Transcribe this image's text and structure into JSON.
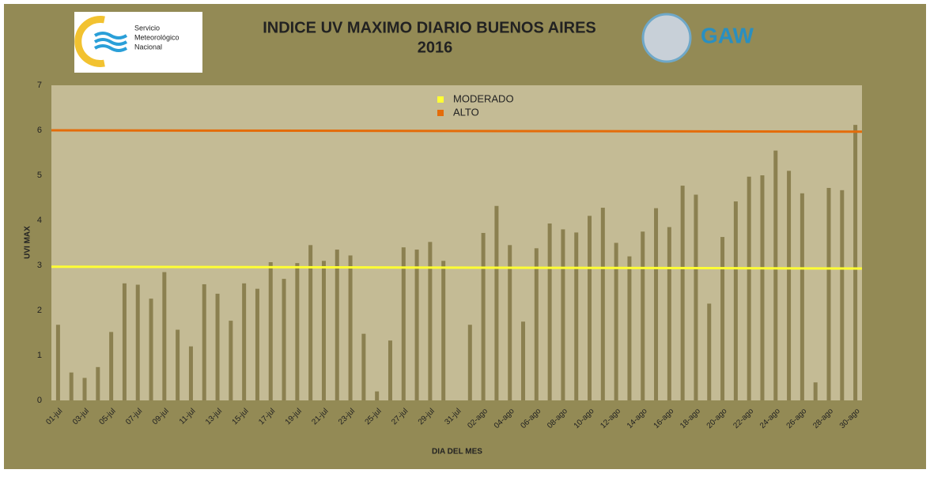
{
  "chart_data": {
    "type": "bar",
    "title": "INDICE UV MAXIMO DIARIO BUENOS AIRES",
    "subtitle": "2016",
    "logo_left": [
      "Servicio",
      "Meteorológico",
      "Nacional"
    ],
    "logo_right": "GAW",
    "x_label": "DIA DEL MES",
    "y_label": "UVI MAX",
    "categories": [
      "01-jul",
      null,
      "03-jul",
      null,
      "05-jul",
      null,
      "07-jul",
      null,
      "09-jul",
      null,
      "11-jul",
      null,
      "13-jul",
      null,
      "15-jul",
      null,
      "17-jul",
      null,
      "19-jul",
      null,
      "21-jul",
      null,
      "23-jul",
      null,
      "25-jul",
      null,
      "27-jul",
      null,
      "29-jul",
      null,
      "31-jul",
      null,
      "02-ago",
      null,
      "04-ago",
      null,
      "06-ago",
      null,
      "08-ago",
      null,
      "10-ago",
      null,
      "12-ago",
      null,
      "14-ago",
      null,
      "16-ago",
      null,
      "18-ago",
      null,
      "20-ago",
      null,
      "22-ago",
      null,
      "24-ago",
      null,
      "26-ago",
      null,
      "28-ago",
      null,
      "30-ago"
    ],
    "values": [
      1.68,
      0.62,
      0.5,
      0.74,
      1.52,
      2.6,
      2.57,
      2.26,
      2.85,
      1.57,
      1.2,
      2.58,
      2.37,
      1.77,
      2.6,
      2.48,
      3.07,
      2.7,
      3.05,
      3.45,
      3.1,
      3.35,
      3.22,
      1.48,
      0.2,
      1.33,
      3.4,
      3.35,
      3.52,
      3.1,
      null,
      1.68,
      3.72,
      4.32,
      3.45,
      1.75,
      3.38,
      3.93,
      3.8,
      3.73,
      4.1,
      4.28,
      3.5,
      3.2,
      3.75,
      4.27,
      3.85,
      4.77,
      4.57,
      2.15,
      3.63,
      4.42,
      4.97,
      5.0,
      5.55,
      5.1,
      4.6,
      0.4,
      4.72,
      4.67,
      6.12
    ],
    "color": "#8b8050",
    "reference_lines": [
      {
        "name": "MODERADO",
        "color": "#ffff33",
        "values": [
          2.97,
          2.93
        ]
      },
      {
        "name": "ALTO",
        "color": "#e46c0a",
        "values": [
          6.0,
          5.97
        ]
      }
    ],
    "ylim": [
      0,
      7
    ],
    "yticks": [
      0,
      1,
      2,
      3,
      4,
      5,
      6,
      7
    ],
    "grid": false
  }
}
